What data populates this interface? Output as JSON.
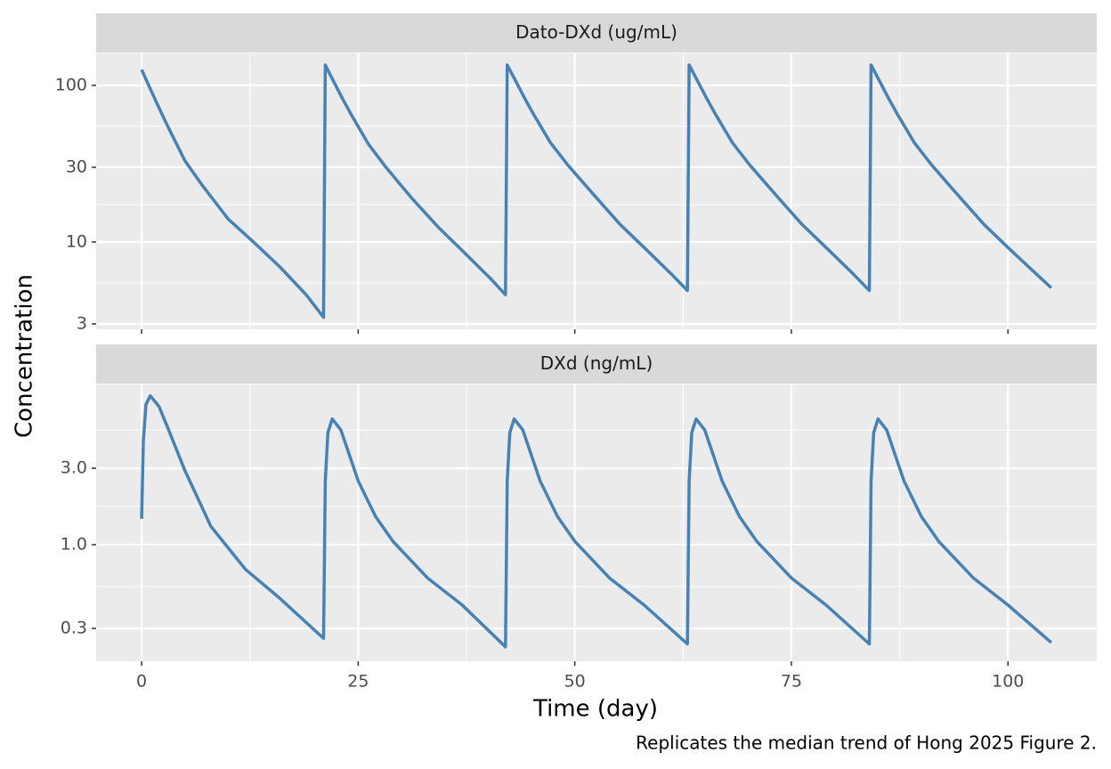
{
  "chart_data": [
    {
      "type": "line",
      "title": "Dato-DXd (ug/mL)",
      "log_y": true,
      "grid": true,
      "color": "#4682b4",
      "xlim": [
        -5.25,
        110.25
      ],
      "ylim": [
        2.77,
        160
      ],
      "yticks": [
        3,
        10,
        30,
        100
      ],
      "x": [
        0,
        1,
        2,
        3,
        5,
        7,
        10,
        13,
        16,
        19,
        21,
        21.2,
        22.2,
        23.2,
        24.2,
        26.2,
        28.2,
        31.2,
        34.2,
        37.2,
        40.2,
        42,
        42.2,
        43.2,
        44.2,
        45.2,
        47.2,
        49.2,
        52.2,
        55.2,
        58.2,
        61.2,
        63,
        63.2,
        64.2,
        65.2,
        66.2,
        68.2,
        70.2,
        73.2,
        76.2,
        79.2,
        82.2,
        84,
        84.2,
        85.2,
        86.2,
        87.2,
        89.2,
        91.2,
        94.2,
        97.2,
        100.2,
        103.2,
        105
      ],
      "values": [
        126,
        95,
        72,
        55,
        33,
        23,
        14,
        9.9,
        6.9,
        4.6,
        3.3,
        135,
        105,
        82,
        65,
        42,
        30,
        19,
        12.5,
        8.6,
        5.9,
        4.6,
        135,
        106,
        83,
        66,
        43,
        31,
        20,
        13,
        9,
        6.2,
        4.9,
        135,
        106,
        83,
        66,
        43,
        31,
        20,
        13,
        9,
        6.2,
        4.9,
        135,
        106,
        83,
        66,
        43,
        31,
        20,
        13,
        9,
        6.3,
        5.1
      ]
    },
    {
      "type": "line",
      "title": "DXd (ng/mL)",
      "log_y": true,
      "grid": true,
      "color": "#4682b4",
      "xlim": [
        -5.25,
        110.25
      ],
      "xticks": [
        0,
        25,
        50,
        75,
        100
      ],
      "ylim": [
        0.187,
        10
      ],
      "yticks": [
        0.3,
        {
          "value": 1,
          "label": "1.0"
        },
        {
          "value": 3,
          "label": "3.0"
        }
      ],
      "x": [
        0,
        0.2,
        0.5,
        1,
        2,
        3,
        5,
        8,
        12,
        16,
        21,
        21.2,
        21.5,
        22,
        23,
        25,
        27,
        29,
        33,
        37,
        42,
        42.2,
        42.5,
        43,
        44,
        46,
        48,
        50,
        54,
        58,
        63,
        63.2,
        63.5,
        64,
        65,
        67,
        69,
        71,
        75,
        79,
        84,
        84.2,
        84.5,
        85,
        86,
        88,
        90,
        92,
        96,
        100,
        105
      ],
      "values": [
        1.45,
        4.5,
        7.5,
        8.5,
        7.3,
        5.4,
        2.9,
        1.3,
        0.7,
        0.46,
        0.26,
        2.5,
        5.0,
        6.1,
        5.2,
        2.5,
        1.5,
        1.05,
        0.62,
        0.42,
        0.23,
        2.5,
        5.0,
        6.1,
        5.2,
        2.5,
        1.5,
        1.05,
        0.62,
        0.42,
        0.24,
        2.5,
        5.0,
        6.1,
        5.2,
        2.5,
        1.5,
        1.05,
        0.62,
        0.42,
        0.24,
        2.5,
        5.0,
        6.1,
        5.2,
        2.5,
        1.5,
        1.05,
        0.62,
        0.42,
        0.245
      ]
    }
  ],
  "xlabel": "Time (day)",
  "ylabel": "Concentration",
  "caption": "Replicates the median trend of Hong 2025 Figure 2."
}
